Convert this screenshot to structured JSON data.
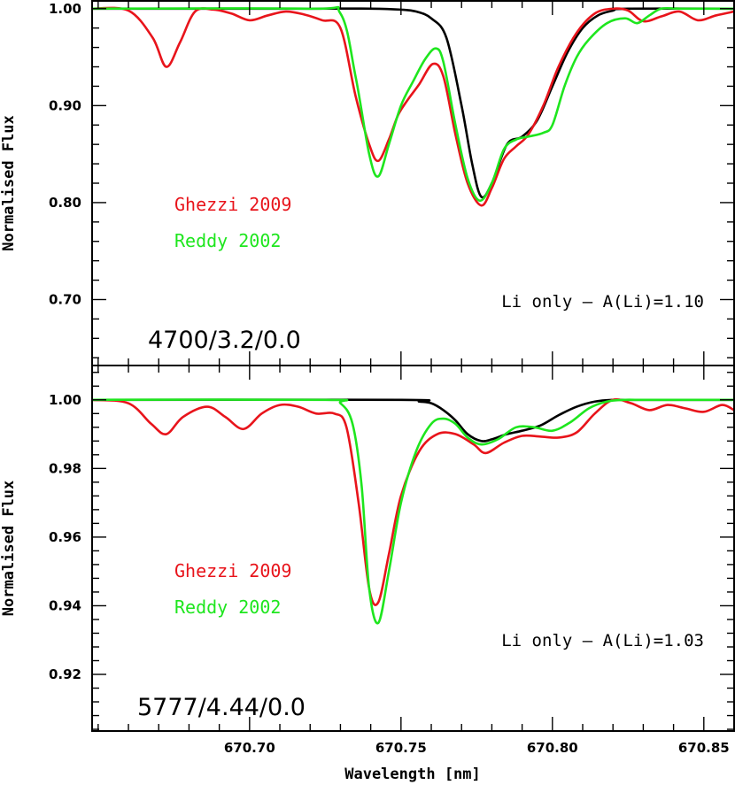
{
  "colors": {
    "black": "#000000",
    "red": "#e8141b",
    "green": "#1ee61e"
  },
  "x_axis": {
    "label": "Wavelength [nm]",
    "ticks": [
      670.7,
      670.75,
      670.8,
      670.85
    ],
    "tick_labels": [
      "670.70",
      "670.75",
      "670.80",
      "670.85"
    ]
  },
  "chart_data": [
    {
      "type": "line",
      "title": "",
      "xlabel": "Wavelength [nm]",
      "ylabel": "Normalised Flux",
      "xlim": [
        670.648,
        670.86
      ],
      "ylim": [
        0.632,
        1.008
      ],
      "yticks": [
        0.7,
        0.8,
        0.9,
        1.0
      ],
      "ytick_labels": [
        "0.70",
        "0.80",
        "0.90",
        "1.00"
      ],
      "model_label": "4700/3.2/0.0",
      "annotation": "Li only – A(Li)=1.10",
      "legend": [
        {
          "name": "Ghezzi 2009",
          "color": "#e8141b"
        },
        {
          "name": "Reddy 2002",
          "color": "#1ee61e"
        }
      ],
      "series": [
        {
          "name": "Li only",
          "color": "#000000",
          "x": [
            670.648,
            670.72,
            670.74,
            670.75,
            670.755,
            670.76,
            670.765,
            670.77,
            670.7735,
            670.7765,
            670.78,
            670.785,
            670.79,
            670.795,
            670.8,
            670.805,
            670.81,
            670.815,
            670.82,
            670.825,
            670.86
          ],
          "y": [
            1.0,
            1.0,
            1.0,
            0.999,
            0.997,
            0.99,
            0.97,
            0.9,
            0.84,
            0.806,
            0.82,
            0.86,
            0.868,
            0.885,
            0.92,
            0.955,
            0.98,
            0.993,
            0.998,
            1.0,
            1.0
          ]
        },
        {
          "name": "Ghezzi 2009",
          "color": "#e8141b",
          "x": [
            670.648,
            670.66,
            670.668,
            670.6725,
            670.677,
            670.682,
            670.688,
            670.694,
            670.7,
            670.706,
            670.712,
            670.718,
            670.724,
            670.73,
            670.735,
            670.7395,
            670.7425,
            670.746,
            670.749,
            670.752,
            670.756,
            670.7605,
            670.764,
            670.768,
            670.772,
            670.7765,
            670.78,
            670.784,
            670.788,
            670.792,
            670.797,
            670.802,
            670.808,
            670.814,
            670.82,
            670.825,
            670.83,
            670.836,
            670.842,
            670.848,
            670.854,
            670.86
          ],
          "y": [
            1.0,
            0.998,
            0.97,
            0.94,
            0.965,
            0.997,
            0.999,
            0.995,
            0.988,
            0.993,
            0.997,
            0.994,
            0.988,
            0.98,
            0.91,
            0.86,
            0.843,
            0.865,
            0.89,
            0.905,
            0.922,
            0.943,
            0.93,
            0.87,
            0.82,
            0.797,
            0.815,
            0.845,
            0.858,
            0.87,
            0.9,
            0.94,
            0.975,
            0.995,
            1.0,
            0.998,
            0.987,
            0.992,
            0.997,
            0.988,
            0.993,
            0.997
          ]
        },
        {
          "name": "Reddy 2002",
          "color": "#1ee61e",
          "x": [
            670.648,
            670.72,
            670.73,
            670.735,
            670.7395,
            670.7425,
            670.746,
            670.75,
            670.754,
            670.758,
            670.7615,
            670.764,
            670.768,
            670.772,
            670.776,
            670.78,
            670.784,
            670.788,
            670.792,
            670.797,
            670.8,
            670.804,
            670.808,
            670.812,
            670.818,
            670.824,
            670.828,
            670.832,
            670.836,
            670.842,
            670.848,
            670.854,
            670.86
          ],
          "y": [
            1.0,
            1.0,
            0.995,
            0.93,
            0.85,
            0.827,
            0.86,
            0.9,
            0.925,
            0.948,
            0.959,
            0.945,
            0.88,
            0.825,
            0.802,
            0.82,
            0.855,
            0.865,
            0.868,
            0.872,
            0.88,
            0.92,
            0.95,
            0.968,
            0.985,
            0.99,
            0.985,
            0.993,
            1.0,
            1.0,
            1.0,
            1.0,
            1.0
          ]
        }
      ]
    },
    {
      "type": "line",
      "title": "",
      "xlabel": "Wavelength [nm]",
      "ylabel": "Normalised Flux",
      "xlim": [
        670.648,
        670.86
      ],
      "ylim": [
        0.9035,
        1.01
      ],
      "yticks": [
        0.92,
        0.94,
        0.96,
        0.98,
        1.0
      ],
      "ytick_labels": [
        "0.92",
        "0.94",
        "0.96",
        "0.98",
        "1.00"
      ],
      "model_label": "5777/4.44/0.0",
      "annotation": "Li only – A(Li)=1.03",
      "legend": [
        {
          "name": "Ghezzi 2009",
          "color": "#e8141b"
        },
        {
          "name": "Reddy 2002",
          "color": "#1ee61e"
        }
      ],
      "series": [
        {
          "name": "Li only",
          "color": "#000000",
          "x": [
            670.648,
            670.75,
            670.756,
            670.76,
            670.764,
            670.768,
            670.772,
            670.7765,
            670.78,
            670.785,
            670.79,
            670.796,
            670.802,
            670.808,
            670.814,
            670.82,
            670.826,
            670.86
          ],
          "y": [
            1.0,
            1.0,
            0.9995,
            0.999,
            0.997,
            0.994,
            0.99,
            0.988,
            0.9885,
            0.99,
            0.991,
            0.9925,
            0.9955,
            0.998,
            0.9995,
            1.0,
            1.0,
            1.0
          ]
        },
        {
          "name": "Ghezzi 2009",
          "color": "#e8141b",
          "x": [
            670.648,
            670.66,
            670.6675,
            670.6725,
            670.678,
            670.686,
            670.692,
            670.698,
            670.704,
            670.71,
            670.716,
            670.722,
            670.728,
            670.732,
            670.736,
            670.7395,
            670.7425,
            670.746,
            670.75,
            670.756,
            670.762,
            670.768,
            670.774,
            670.778,
            670.784,
            670.79,
            670.796,
            670.802,
            670.808,
            670.814,
            670.82,
            670.826,
            670.832,
            670.838,
            670.844,
            670.85,
            670.856,
            670.86
          ],
          "y": [
            1.0,
            0.999,
            0.993,
            0.99,
            0.995,
            0.998,
            0.995,
            0.9915,
            0.996,
            0.9985,
            0.998,
            0.996,
            0.996,
            0.992,
            0.97,
            0.945,
            0.941,
            0.955,
            0.972,
            0.985,
            0.99,
            0.99,
            0.987,
            0.9845,
            0.9875,
            0.9895,
            0.9893,
            0.989,
            0.9905,
            0.996,
            1.0,
            0.999,
            0.997,
            0.9985,
            0.9975,
            0.9965,
            0.9985,
            0.997
          ]
        },
        {
          "name": "Reddy 2002",
          "color": "#1ee61e",
          "x": [
            670.648,
            670.725,
            670.73,
            670.734,
            670.737,
            670.7395,
            670.7425,
            670.746,
            670.75,
            670.755,
            670.76,
            670.764,
            670.768,
            670.772,
            670.7765,
            670.782,
            670.788,
            670.794,
            670.8,
            670.806,
            670.812,
            670.818,
            670.824,
            670.83,
            670.86
          ],
          "y": [
            1.0,
            1.0,
            0.999,
            0.993,
            0.975,
            0.945,
            0.935,
            0.95,
            0.97,
            0.985,
            0.993,
            0.9945,
            0.993,
            0.989,
            0.987,
            0.9885,
            0.992,
            0.992,
            0.991,
            0.9935,
            0.9975,
            0.9995,
            1.0,
            1.0,
            1.0
          ]
        }
      ]
    }
  ]
}
